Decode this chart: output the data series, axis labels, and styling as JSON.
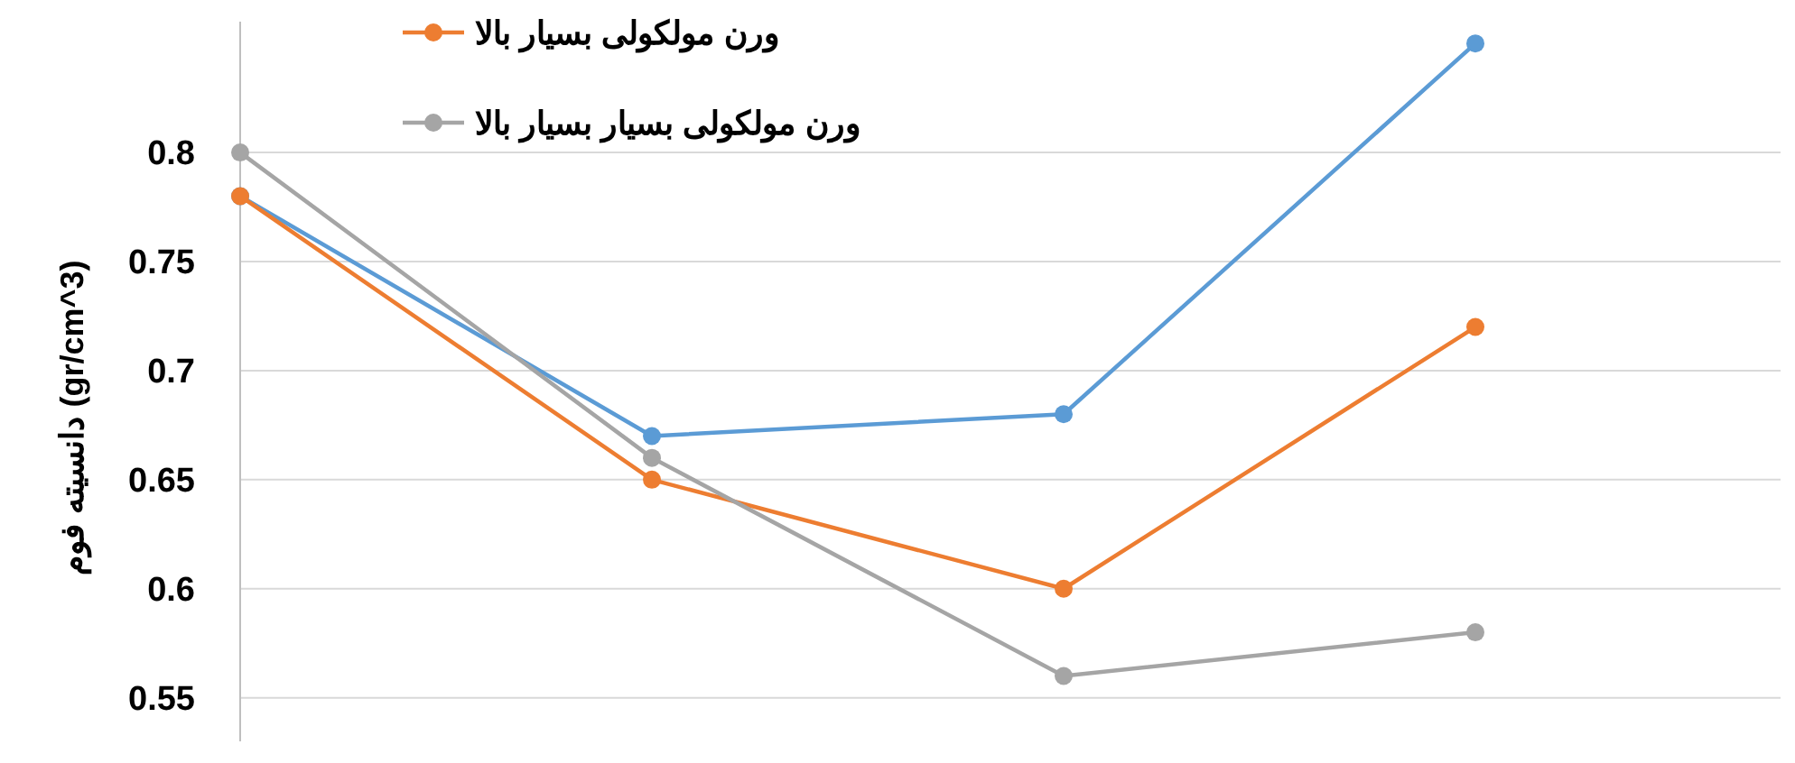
{
  "chart_data": {
    "type": "line",
    "ylabel": "دانسیته فوم (gr/cm^3)",
    "categories": [
      null,
      null,
      null,
      null
    ],
    "series": [
      {
        "color": "#5b9bd5",
        "values": [
          0.78,
          0.67,
          0.68,
          0.85
        ]
      },
      {
        "name": "ورن مولکولی بسیار بالا",
        "color": "#ed7d31",
        "values": [
          0.78,
          0.65,
          0.6,
          0.72
        ]
      },
      {
        "name": "ورن مولکولی بسیار بسیار بالا",
        "color": "#a5a5a5",
        "values": [
          0.8,
          0.66,
          0.56,
          0.58
        ]
      }
    ],
    "ylim": [
      0.53,
      0.86
    ],
    "yticks": [
      0.55,
      0.6,
      0.65,
      0.7,
      0.75,
      0.8
    ],
    "grid": "y",
    "legend": "top",
    "marker": "circle",
    "line_style": "solid"
  }
}
